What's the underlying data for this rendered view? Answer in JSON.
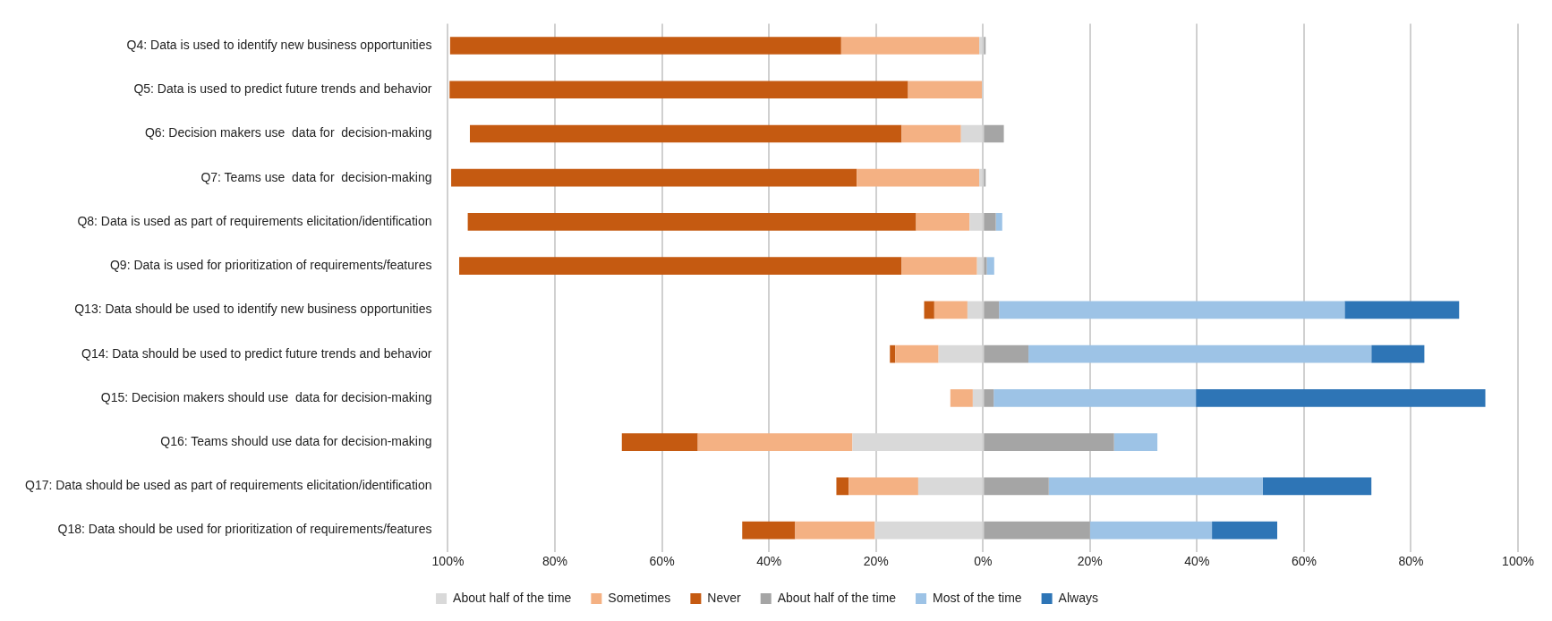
{
  "chart_data": {
    "type": "bar",
    "orientation": "horizontal",
    "stacked": true,
    "categories": [
      "Q4: Data is used to identify new business opportunities",
      "Q5: Data is used to predict future trends and behavior",
      "Q6: Decision makers use  data for  decision-making",
      "Q7: Teams use  data for  decision-making",
      "Q8: Data is used as part of requirements elicitation/identification",
      "Q9: Data is used for prioritization of requirements/features",
      "Q13: Data should be used to identify new business opportunities",
      "Q14: Data should be used to predict future trends and behavior",
      "Q15: Decision makers should use  data for decision-making",
      "Q16: Teams should use data for decision-making",
      "Q17: Data should be used as part of requirements elicitation/identification",
      "Q18: Data should be used for prioritization of requirements/features"
    ],
    "series": [
      {
        "name": "About half of the time",
        "color": "#d9d9d9",
        "values": [
          -0.7,
          -0.2,
          -4.1,
          -0.7,
          -2.5,
          -1.1,
          -2.9,
          -8.3,
          -1.9,
          -24.4,
          -12.1,
          -20.2
        ]
      },
      {
        "name": "Sometimes",
        "color": "#f4b183",
        "values": [
          -25.8,
          -13.8,
          -11.1,
          -22.9,
          -10,
          -14.1,
          -6.2,
          -8.1,
          -4.2,
          -28.9,
          -13,
          -14.9
        ]
      },
      {
        "name": "Never",
        "color": "#c55a11",
        "values": [
          -73.1,
          -85.7,
          -80.7,
          -75.8,
          -83.8,
          -82.7,
          -1.9,
          -1,
          0,
          -14.2,
          -2.3,
          -9.9
        ]
      },
      {
        "name": "About half of the time",
        "color": "#a5a5a5",
        "values": [
          0.5,
          0,
          3.9,
          0.5,
          2.4,
          0.7,
          3,
          8.5,
          2,
          24.5,
          12.3,
          20
        ]
      },
      {
        "name": "Most of the time",
        "color": "#9dc3e6",
        "values": [
          0,
          0,
          0,
          0,
          1.2,
          1.4,
          64.6,
          64.1,
          37.8,
          8.1,
          40,
          22.8
        ]
      },
      {
        "name": "Always",
        "color": "#2e75b6",
        "values": [
          0,
          0,
          0,
          0,
          0,
          0,
          21.4,
          9.9,
          54.1,
          0,
          20.3,
          12.2
        ]
      }
    ],
    "xlim": [
      -100,
      100
    ],
    "xticks": [
      {
        "value": -100,
        "label": "100%"
      },
      {
        "value": -80,
        "label": "80%"
      },
      {
        "value": -60,
        "label": "60%"
      },
      {
        "value": -40,
        "label": "40%"
      },
      {
        "value": -20,
        "label": "20%"
      },
      {
        "value": 0,
        "label": "0%"
      },
      {
        "value": 20,
        "label": "20%"
      },
      {
        "value": 40,
        "label": "40%"
      },
      {
        "value": 60,
        "label": "60%"
      },
      {
        "value": 80,
        "label": "80%"
      },
      {
        "value": 100,
        "label": "100%"
      }
    ],
    "grid": "x",
    "legend": "bottom"
  }
}
